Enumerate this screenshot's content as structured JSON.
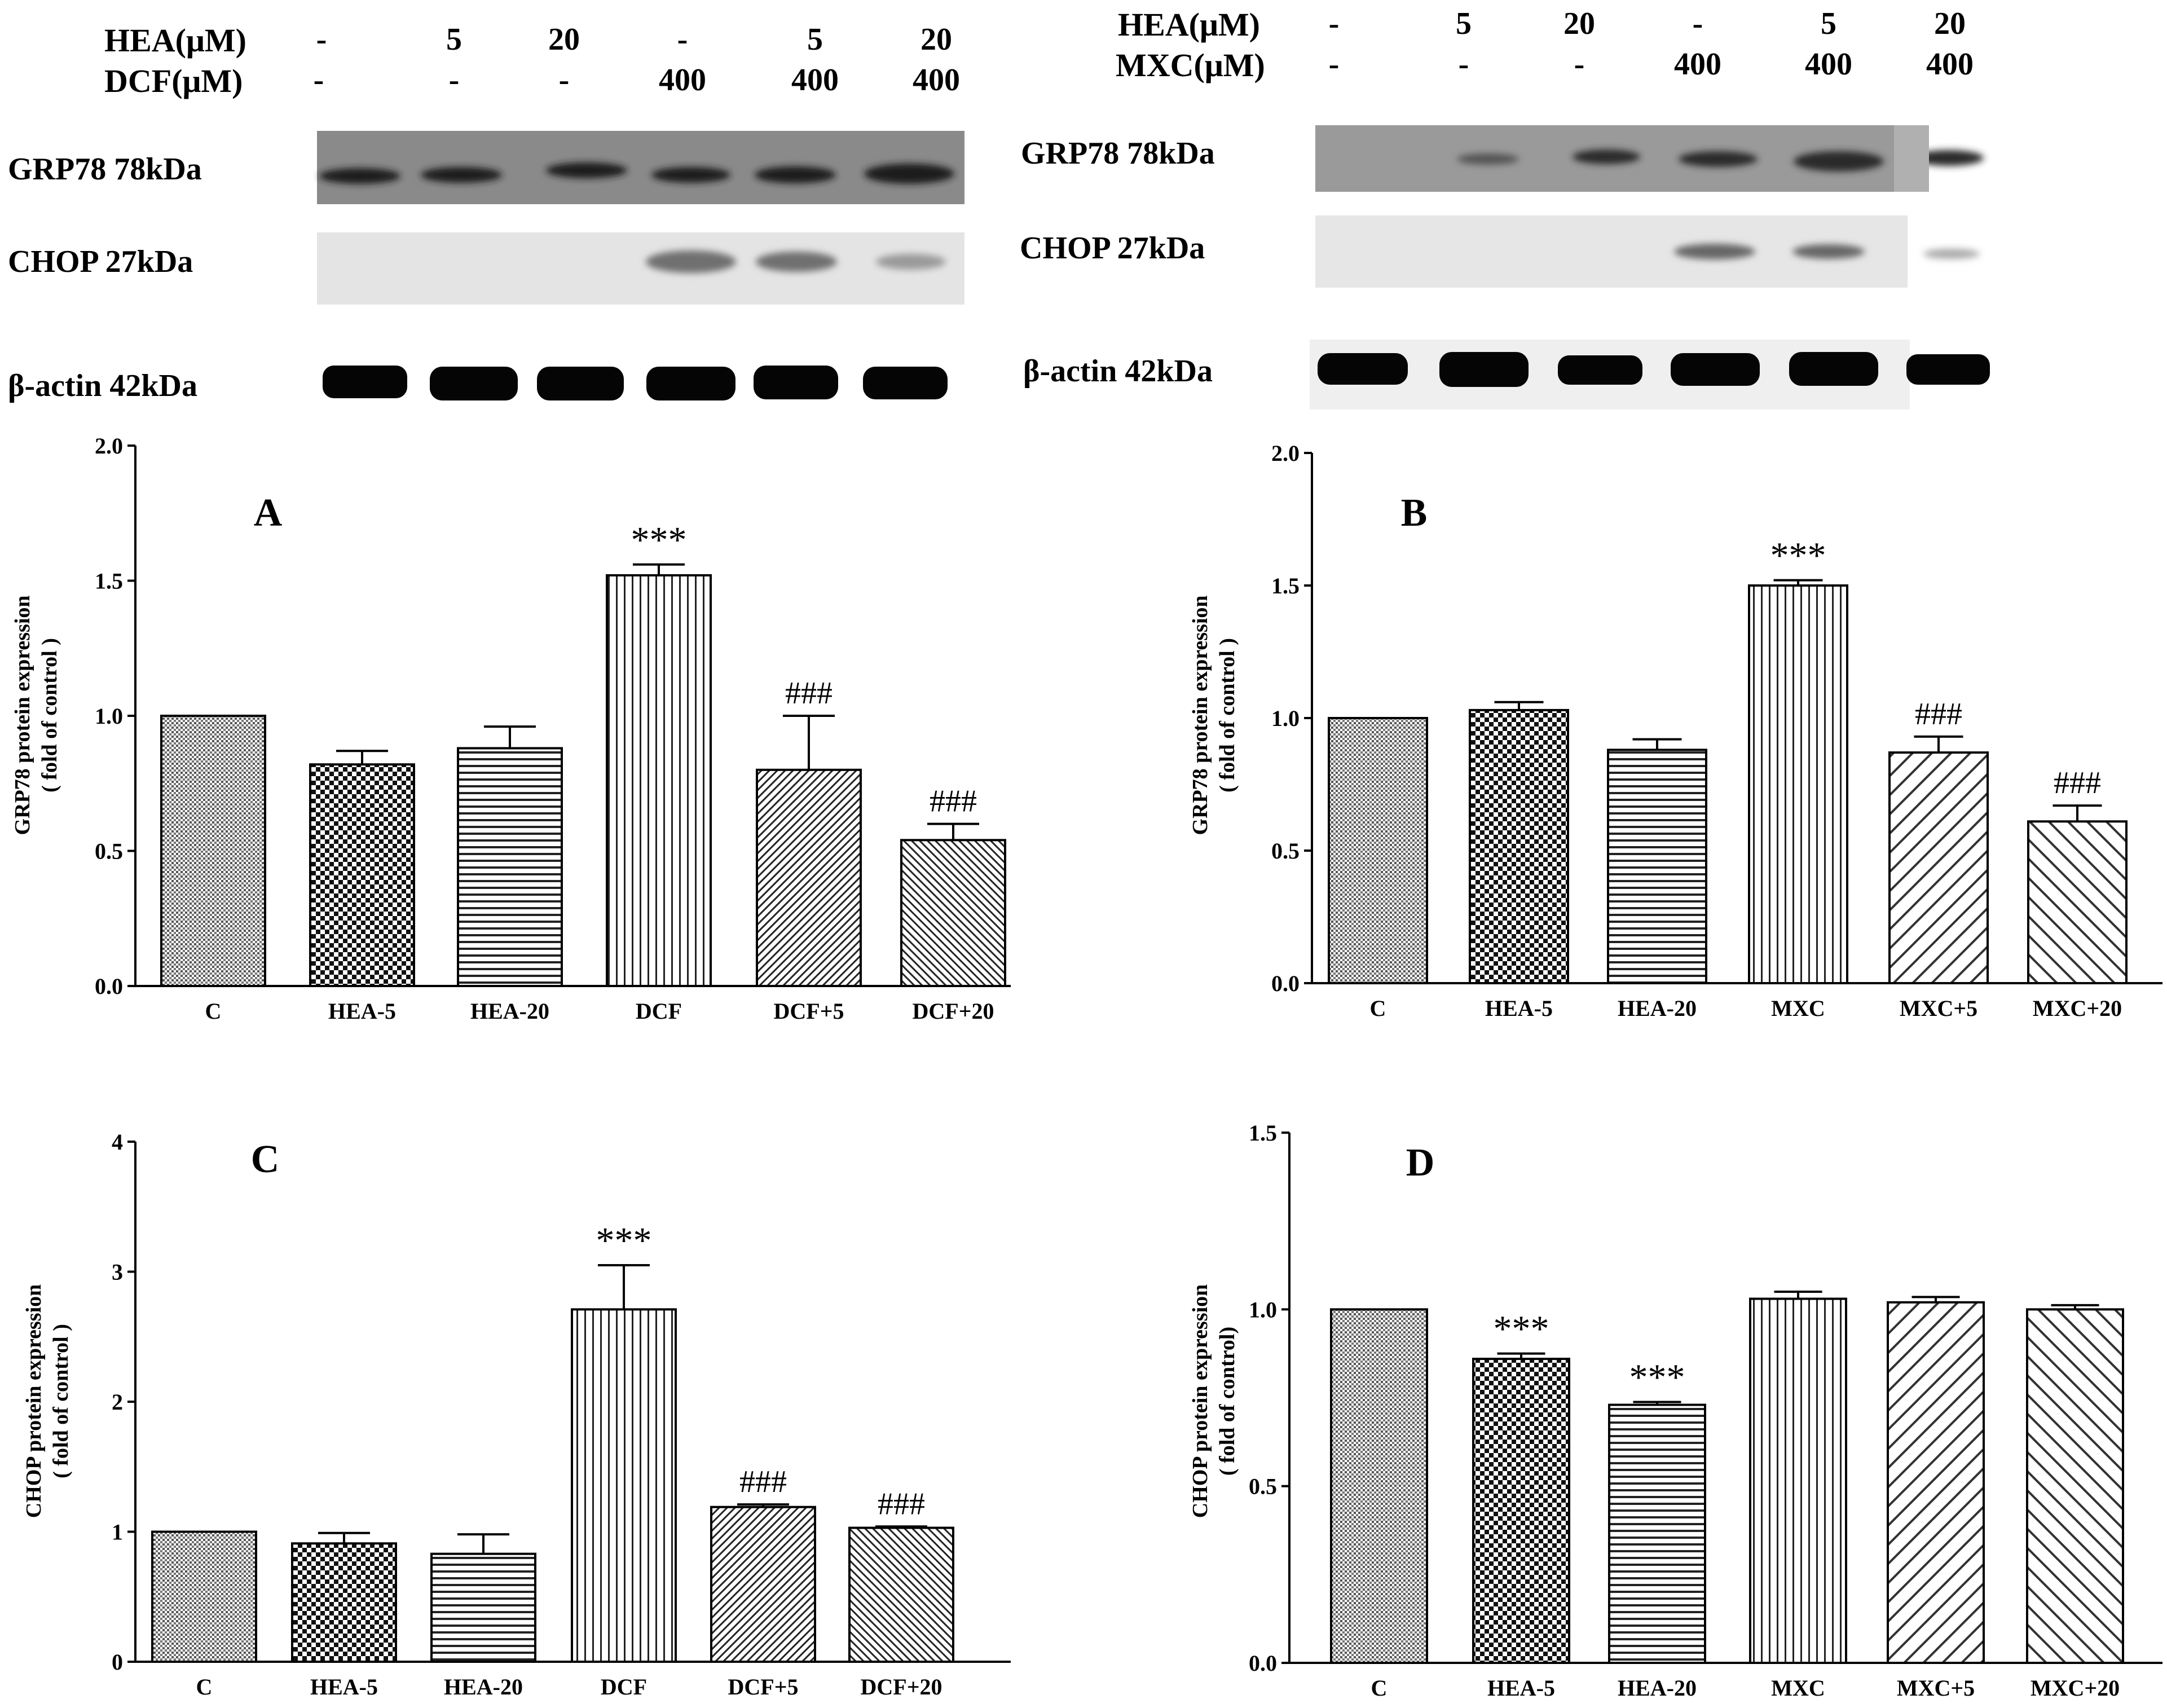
{
  "blots": [
    {
      "id": "left",
      "conditions": [
        {
          "label": "HEA(μM)",
          "values": [
            "-",
            "5",
            "20",
            "-",
            "5",
            "20"
          ]
        },
        {
          "label": "DCF(μM)",
          "values": [
            "-",
            "-",
            "-",
            "400",
            "400",
            "400"
          ]
        }
      ],
      "bands": [
        "GRP78 78kDa",
        "CHOP 27kDa",
        "β-actin 42kDa"
      ]
    },
    {
      "id": "right",
      "conditions": [
        {
          "label": "HEA(μM)",
          "values": [
            "-",
            "5",
            "20",
            "-",
            "5",
            "20"
          ]
        },
        {
          "label": "MXC(μM)",
          "values": [
            "-",
            "-",
            "-",
            "400",
            "400",
            "400"
          ]
        }
      ],
      "bands": [
        "GRP78 78kDa",
        "CHOP 27kDa",
        "β-actin 42kDa"
      ]
    }
  ],
  "chart_data": [
    {
      "type": "bar",
      "panel": "A",
      "categories": [
        "C",
        "HEA-5",
        "HEA-20",
        "DCF",
        "DCF+5",
        "DCF+20"
      ],
      "values": [
        1.0,
        0.82,
        0.88,
        1.52,
        0.8,
        0.54
      ],
      "errors": [
        0,
        0.05,
        0.08,
        0.04,
        0.2,
        0.06
      ],
      "annotations": [
        "",
        "",
        "",
        "***",
        "###",
        "###"
      ],
      "ylabel": "GRP78 protein expression",
      "ylabel2": "( fold of control )",
      "ylim": [
        0,
        2.0
      ],
      "yticks": [
        "0.0",
        "0.5",
        "1.0",
        "1.5",
        "2.0"
      ]
    },
    {
      "type": "bar",
      "panel": "B",
      "categories": [
        "C",
        "HEA-5",
        "HEA-20",
        "MXC",
        "MXC+5",
        "MXC+20"
      ],
      "values": [
        1.0,
        1.03,
        0.88,
        1.5,
        0.87,
        0.61
      ],
      "errors": [
        0,
        0.03,
        0.04,
        0.02,
        0.06,
        0.06
      ],
      "annotations": [
        "",
        "",
        "",
        "***",
        "###",
        "###"
      ],
      "ylabel": "GRP78 protein expression",
      "ylabel2": "( fold of control )",
      "ylim": [
        0,
        2.0
      ],
      "yticks": [
        "0.0",
        "0.5",
        "1.0",
        "1.5",
        "2.0"
      ]
    },
    {
      "type": "bar",
      "panel": "C",
      "categories": [
        "C",
        "HEA-5",
        "HEA-20",
        "DCF",
        "DCF+5",
        "DCF+20"
      ],
      "values": [
        1.0,
        0.91,
        0.83,
        2.71,
        1.19,
        1.03
      ],
      "errors": [
        0,
        0.08,
        0.15,
        0.34,
        0.02,
        0.01
      ],
      "annotations": [
        "",
        "",
        "",
        "***",
        "###",
        "###"
      ],
      "ylabel": "CHOP protein expression",
      "ylabel2": "( fold of control )",
      "ylim": [
        0,
        4
      ],
      "yticks": [
        "0",
        "1",
        "2",
        "3",
        "4"
      ]
    },
    {
      "type": "bar",
      "panel": "D",
      "categories": [
        "C",
        "HEA-5",
        "HEA-20",
        "MXC",
        "MXC+5",
        "MXC+20"
      ],
      "values": [
        1.0,
        0.86,
        0.73,
        1.03,
        1.02,
        1.0
      ],
      "errors": [
        0,
        0.015,
        0.008,
        0.02,
        0.015,
        0.012
      ],
      "annotations": [
        "",
        "***",
        "***",
        "",
        "",
        ""
      ],
      "ylabel": "CHOP protein expression",
      "ylabel2": "( fold of control)",
      "ylim": [
        0,
        1.5
      ],
      "yticks": [
        "0.0",
        "0.5",
        "1.0",
        "1.5"
      ]
    }
  ]
}
